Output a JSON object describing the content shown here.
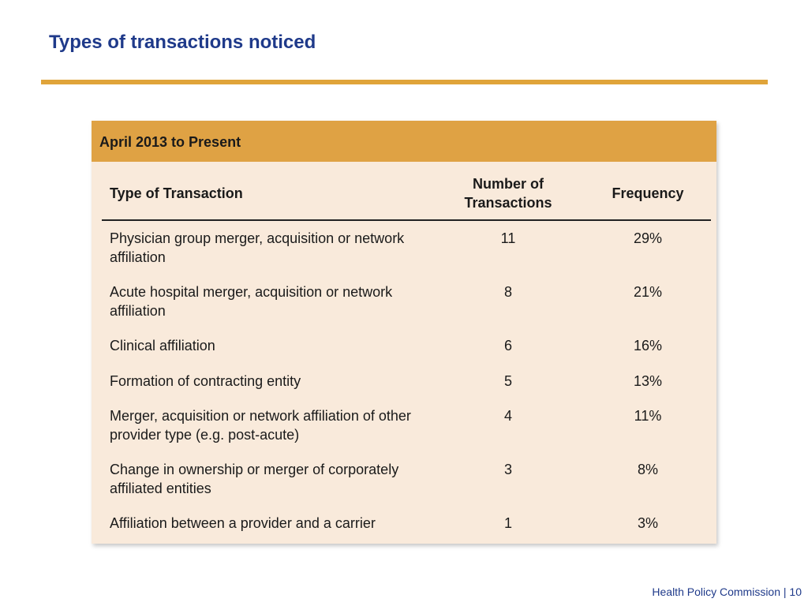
{
  "title": "Types of transactions noticed",
  "table": {
    "period": "April 2013 to Present",
    "columns": {
      "type": "Type of Transaction",
      "count": "Number of Transactions",
      "frequency": "Frequency"
    },
    "rows": [
      {
        "type": "Physician group merger, acquisition or network affiliation",
        "count": "11",
        "frequency": "29%"
      },
      {
        "type": "Acute hospital merger, acquisition or network affiliation",
        "count": "8",
        "frequency": "21%"
      },
      {
        "type": "Clinical affiliation",
        "count": "6",
        "frequency": "16%"
      },
      {
        "type": "Formation of contracting entity",
        "count": "5",
        "frequency": "13%"
      },
      {
        "type": "Merger, acquisition or network affiliation of other provider type (e.g. post-acute)",
        "count": "4",
        "frequency": "11%"
      },
      {
        "type": "Change in ownership or merger of corporately affiliated entities",
        "count": "3",
        "frequency": "8%"
      },
      {
        "type": "Affiliation between a provider and a carrier",
        "count": "1",
        "frequency": "3%"
      }
    ]
  },
  "footer": "Health Policy  Commission | 10",
  "colors": {
    "title": "#1f3a8a",
    "accent": "#e0a43a",
    "header_band": "#dfa244",
    "card_background": "#f9eadb"
  }
}
